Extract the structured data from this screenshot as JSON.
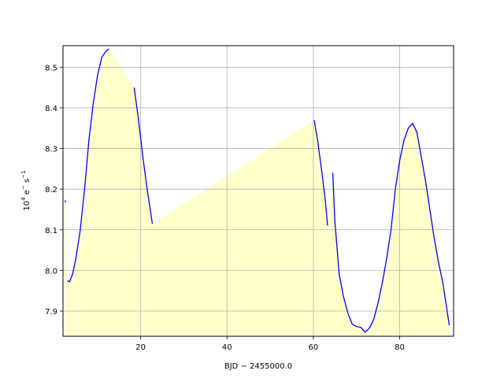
{
  "chart_data": {
    "type": "line",
    "xlabel": "BJD − 2455000.0",
    "ylabel_base": "10",
    "ylabel_exp": "4",
    "ylabel_unit": " e",
    "ylabel_minus": "−",
    "ylabel_s": " s",
    "ylabel_s_exp": "−1",
    "xlim": [
      2.0,
      92.5
    ],
    "ylim": [
      7.838,
      8.553
    ],
    "xticks": [
      20,
      40,
      60,
      80
    ],
    "yticks": [
      7.9,
      8.0,
      8.1,
      8.2,
      8.3,
      8.4,
      8.5
    ],
    "grid": true,
    "line_color": "#0000ff",
    "fill_color": "#ffffcc",
    "fill_baseline": 7.838,
    "series": [
      {
        "segments": [
          [
            [
              2.4,
              8.172
            ],
            [
              2.7,
              8.168
            ]
          ],
          [
            [
              3.0,
              7.975
            ],
            [
              3.5,
              7.972
            ],
            [
              4.2,
              7.99
            ],
            [
              5.0,
              8.03
            ],
            [
              6.0,
              8.1
            ],
            [
              7.0,
              8.2
            ],
            [
              8.0,
              8.32
            ],
            [
              9.0,
              8.41
            ],
            [
              10.0,
              8.48
            ],
            [
              11.0,
              8.525
            ],
            [
              12.0,
              8.54
            ],
            [
              12.7,
              8.545
            ]
          ],
          [
            [
              18.5,
              8.45
            ],
            [
              19.5,
              8.37
            ],
            [
              20.5,
              8.28
            ],
            [
              21.5,
              8.2
            ],
            [
              22.7,
              8.115
            ]
          ],
          [
            [
              60.2,
              8.37
            ],
            [
              61.0,
              8.32
            ],
            [
              62.0,
              8.24
            ],
            [
              62.8,
              8.17
            ],
            [
              63.3,
              8.11
            ]
          ],
          [
            [
              64.5,
              8.24
            ],
            [
              65.0,
              8.12
            ],
            [
              66.0,
              7.99
            ],
            [
              67.0,
              7.935
            ],
            [
              68.0,
              7.895
            ],
            [
              69.0,
              7.868
            ],
            [
              70.0,
              7.862
            ],
            [
              71.0,
              7.86
            ],
            [
              72.0,
              7.848
            ],
            [
              73.0,
              7.858
            ],
            [
              74.0,
              7.88
            ],
            [
              75.0,
              7.92
            ],
            [
              76.0,
              7.97
            ],
            [
              77.0,
              8.03
            ],
            [
              78.0,
              8.1
            ],
            [
              79.0,
              8.2
            ],
            [
              80.0,
              8.27
            ],
            [
              81.0,
              8.32
            ],
            [
              82.0,
              8.35
            ],
            [
              83.0,
              8.362
            ],
            [
              84.0,
              8.34
            ],
            [
              85.0,
              8.28
            ],
            [
              86.0,
              8.22
            ],
            [
              87.0,
              8.15
            ],
            [
              88.0,
              8.08
            ],
            [
              89.0,
              8.02
            ],
            [
              90.0,
              7.97
            ],
            [
              91.0,
              7.9
            ],
            [
              91.5,
              7.865
            ]
          ]
        ]
      }
    ]
  }
}
